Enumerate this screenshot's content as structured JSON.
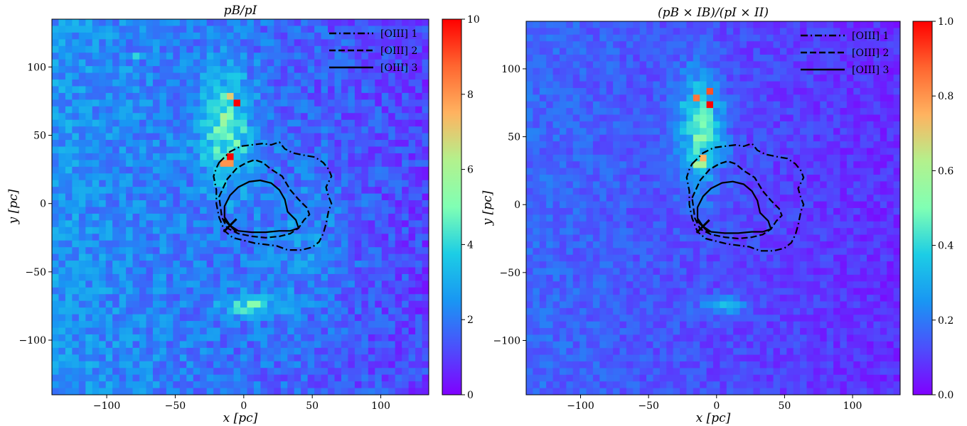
{
  "chart_data": [
    {
      "type": "heatmap",
      "title": "pB/pI",
      "xlabel": "x [pc]",
      "ylabel": "y [pc]",
      "xlim": [
        -140,
        135
      ],
      "ylim": [
        -140,
        135
      ],
      "xticks": [
        -100,
        -50,
        0,
        50,
        100
      ],
      "yticks": [
        -100,
        -50,
        0,
        50,
        100
      ],
      "xtick_labels": [
        "−100",
        "−50",
        "0",
        "50",
        "100"
      ],
      "ytick_labels": [
        "−100",
        "−50",
        "0",
        "50",
        "100"
      ],
      "colormap": "rainbow",
      "colorbar": {
        "range": [
          0,
          10
        ],
        "ticks": [
          0,
          2,
          4,
          6,
          8,
          10
        ],
        "tick_labels": [
          "0",
          "2",
          "4",
          "6",
          "8",
          "10"
        ]
      },
      "background_level": 1.8,
      "hotspots": [
        {
          "x": -5,
          "y": 72,
          "value": 10
        },
        {
          "x": -10,
          "y": 36,
          "value": 10
        },
        {
          "x": -12,
          "y": 30,
          "value": 8
        },
        {
          "x": -8,
          "y": 78,
          "value": 7
        },
        {
          "x": -15,
          "y": 62,
          "value": 6
        },
        {
          "x": -80,
          "y": 108,
          "value": 4
        }
      ],
      "blobs": [
        {
          "x": -12,
          "y": 55,
          "sx": 14,
          "sy": 30,
          "amp": 2.6
        },
        {
          "x": 5,
          "y": -75,
          "sx": 14,
          "sy": 6,
          "amp": 2.2
        },
        {
          "x": 45,
          "y": -30,
          "sx": 25,
          "sy": 40,
          "amp": 0.8
        }
      ],
      "legend": {
        "position": "upper right",
        "entries": [
          {
            "label": "[OIII] 1",
            "style": "dashdot"
          },
          {
            "label": "[OIII] 2",
            "style": "dashed"
          },
          {
            "label": "[OIII] 3",
            "style": "solid"
          }
        ]
      },
      "contours": [
        {
          "name": "[OIII] 1",
          "style": "dashdot",
          "points": [
            [
              -18,
              30
            ],
            [
              -10,
              38
            ],
            [
              -2,
              42
            ],
            [
              6,
              43
            ],
            [
              14,
              44
            ],
            [
              20,
              43
            ],
            [
              26,
              45
            ],
            [
              30,
              40
            ],
            [
              36,
              37
            ],
            [
              46,
              35
            ],
            [
              52,
              34
            ],
            [
              58,
              30
            ],
            [
              62,
              25
            ],
            [
              64,
              20
            ],
            [
              60,
              12
            ],
            [
              62,
              5
            ],
            [
              64,
              0
            ],
            [
              62,
              -5
            ],
            [
              60,
              -15
            ],
            [
              58,
              -22
            ],
            [
              55,
              -28
            ],
            [
              50,
              -32
            ],
            [
              42,
              -34
            ],
            [
              32,
              -34
            ],
            [
              24,
              -31
            ],
            [
              16,
              -30
            ],
            [
              8,
              -29
            ],
            [
              0,
              -27
            ],
            [
              -8,
              -25
            ],
            [
              -14,
              -20
            ],
            [
              -18,
              -10
            ],
            [
              -20,
              0
            ],
            [
              -20,
              10
            ],
            [
              -22,
              20
            ],
            [
              -20,
              26
            ],
            [
              -18,
              30
            ]
          ]
        },
        {
          "name": "[OIII] 2",
          "style": "dashed",
          "points": [
            [
              -18,
              5
            ],
            [
              -12,
              18
            ],
            [
              -5,
              26
            ],
            [
              2,
              30
            ],
            [
              8,
              32
            ],
            [
              14,
              30
            ],
            [
              20,
              25
            ],
            [
              28,
              20
            ],
            [
              34,
              10
            ],
            [
              40,
              3
            ],
            [
              46,
              -3
            ],
            [
              48,
              -8
            ],
            [
              44,
              -12
            ],
            [
              40,
              -18
            ],
            [
              34,
              -22
            ],
            [
              26,
              -24
            ],
            [
              16,
              -25
            ],
            [
              6,
              -24
            ],
            [
              -4,
              -22
            ],
            [
              -12,
              -18
            ],
            [
              -16,
              -10
            ],
            [
              -18,
              5
            ]
          ]
        },
        {
          "name": "[OIII] 3",
          "style": "solid",
          "points": [
            [
              -14,
              -2
            ],
            [
              -10,
              6
            ],
            [
              -4,
              12
            ],
            [
              4,
              16
            ],
            [
              12,
              17
            ],
            [
              20,
              15
            ],
            [
              26,
              10
            ],
            [
              30,
              3
            ],
            [
              32,
              -6
            ],
            [
              38,
              -12
            ],
            [
              40,
              -18
            ],
            [
              34,
              -20
            ],
            [
              26,
              -20
            ],
            [
              16,
              -21
            ],
            [
              6,
              -21
            ],
            [
              -4,
              -20
            ],
            [
              -10,
              -16
            ],
            [
              -14,
              -10
            ],
            [
              -14,
              -2
            ]
          ]
        }
      ],
      "marker": {
        "symbol": "x",
        "x": -10,
        "y": -16
      }
    },
    {
      "type": "heatmap",
      "title": "(pB × IB)/(pI × II)",
      "xlabel": "x [pc]",
      "ylabel": "y [pc]",
      "xlim": [
        -140,
        135
      ],
      "ylim": [
        -140,
        135
      ],
      "xticks": [
        -100,
        -50,
        0,
        50,
        100
      ],
      "yticks": [
        -100,
        -50,
        0,
        50,
        100
      ],
      "xtick_labels": [
        "−100",
        "−50",
        "0",
        "50",
        "100"
      ],
      "ytick_labels": [
        "−100",
        "−50",
        "0",
        "50",
        "100"
      ],
      "colormap": "rainbow",
      "colorbar": {
        "range": [
          0,
          1
        ],
        "ticks": [
          0,
          0.2,
          0.4,
          0.6,
          0.8,
          1.0
        ],
        "tick_labels": [
          "0.0",
          "0.2",
          "0.4",
          "0.6",
          "0.8",
          "1.0"
        ]
      },
      "background_level": 0.12,
      "hotspots": [
        {
          "x": -5,
          "y": 72,
          "value": 1.0
        },
        {
          "x": -15,
          "y": 78,
          "value": 0.85
        },
        {
          "x": -5,
          "y": 82,
          "value": 0.9
        },
        {
          "x": -10,
          "y": 36,
          "value": 0.75
        },
        {
          "x": -12,
          "y": 30,
          "value": 0.6
        }
      ],
      "blobs": [
        {
          "x": -12,
          "y": 55,
          "sx": 12,
          "sy": 28,
          "amp": 0.32
        },
        {
          "x": 5,
          "y": -75,
          "sx": 12,
          "sy": 5,
          "amp": 0.18
        }
      ],
      "legend": {
        "position": "upper right",
        "entries": [
          {
            "label": "[OIII] 1",
            "style": "dashdot"
          },
          {
            "label": "[OIII] 2",
            "style": "dashed"
          },
          {
            "label": "[OIII] 3",
            "style": "solid"
          }
        ]
      },
      "contours": [
        {
          "name": "[OIII] 1",
          "style": "dashdot",
          "points": [
            [
              -18,
              30
            ],
            [
              -10,
              38
            ],
            [
              -2,
              42
            ],
            [
              6,
              43
            ],
            [
              14,
              44
            ],
            [
              20,
              43
            ],
            [
              26,
              45
            ],
            [
              30,
              40
            ],
            [
              36,
              37
            ],
            [
              46,
              35
            ],
            [
              52,
              34
            ],
            [
              58,
              30
            ],
            [
              62,
              25
            ],
            [
              64,
              20
            ],
            [
              60,
              12
            ],
            [
              62,
              5
            ],
            [
              64,
              0
            ],
            [
              62,
              -5
            ],
            [
              60,
              -15
            ],
            [
              58,
              -22
            ],
            [
              55,
              -28
            ],
            [
              50,
              -32
            ],
            [
              42,
              -34
            ],
            [
              32,
              -34
            ],
            [
              24,
              -31
            ],
            [
              16,
              -30
            ],
            [
              8,
              -29
            ],
            [
              0,
              -27
            ],
            [
              -8,
              -25
            ],
            [
              -14,
              -20
            ],
            [
              -18,
              -10
            ],
            [
              -20,
              0
            ],
            [
              -20,
              10
            ],
            [
              -22,
              20
            ],
            [
              -20,
              26
            ],
            [
              -18,
              30
            ]
          ]
        },
        {
          "name": "[OIII] 2",
          "style": "dashed",
          "points": [
            [
              -18,
              5
            ],
            [
              -12,
              18
            ],
            [
              -5,
              26
            ],
            [
              2,
              30
            ],
            [
              8,
              32
            ],
            [
              14,
              30
            ],
            [
              20,
              25
            ],
            [
              28,
              20
            ],
            [
              34,
              10
            ],
            [
              40,
              3
            ],
            [
              46,
              -3
            ],
            [
              48,
              -8
            ],
            [
              44,
              -12
            ],
            [
              40,
              -18
            ],
            [
              34,
              -22
            ],
            [
              26,
              -24
            ],
            [
              16,
              -25
            ],
            [
              6,
              -24
            ],
            [
              -4,
              -22
            ],
            [
              -12,
              -18
            ],
            [
              -16,
              -10
            ],
            [
              -18,
              5
            ]
          ]
        },
        {
          "name": "[OIII] 3",
          "style": "solid",
          "points": [
            [
              -14,
              -2
            ],
            [
              -10,
              6
            ],
            [
              -4,
              12
            ],
            [
              4,
              16
            ],
            [
              12,
              17
            ],
            [
              20,
              15
            ],
            [
              26,
              10
            ],
            [
              30,
              3
            ],
            [
              32,
              -6
            ],
            [
              38,
              -12
            ],
            [
              40,
              -18
            ],
            [
              34,
              -20
            ],
            [
              26,
              -20
            ],
            [
              16,
              -21
            ],
            [
              6,
              -21
            ],
            [
              -4,
              -20
            ],
            [
              -10,
              -16
            ],
            [
              -14,
              -10
            ],
            [
              -14,
              -2
            ]
          ]
        }
      ],
      "marker": {
        "symbol": "x",
        "x": -10,
        "y": -16
      }
    }
  ]
}
